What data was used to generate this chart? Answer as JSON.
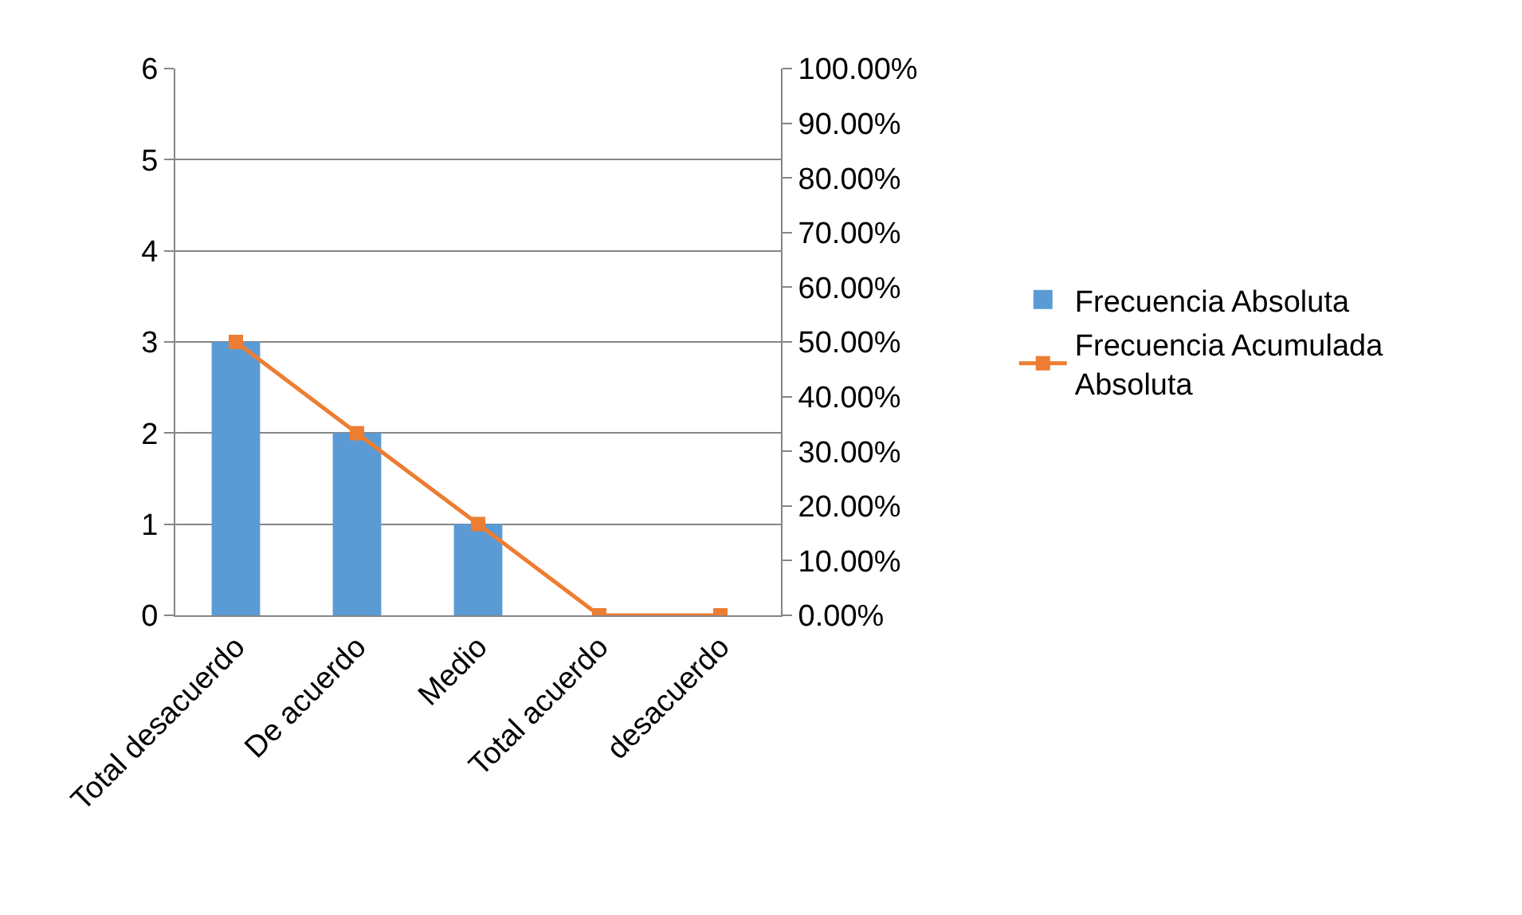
{
  "chart_data": {
    "type": "bar",
    "categories": [
      "Total desacuerdo",
      "De acuerdo",
      "Medio",
      "Total acuerdo",
      "desacuerdo"
    ],
    "series": [
      {
        "name": "Frecuencia Absoluta",
        "color": "#5b9bd5",
        "values": [
          3,
          2,
          1,
          0,
          0
        ]
      },
      {
        "name": "Frecuencia Acumulada Absoluta",
        "type": "line",
        "axis": "y2",
        "color": "#ed7d31",
        "marker": "square",
        "line_style": "solid",
        "values": [
          50,
          33.3,
          16.7,
          0,
          0
        ]
      }
    ],
    "ylim": [
      0,
      6
    ],
    "yticks": [
      0,
      1,
      2,
      3,
      4,
      5,
      6
    ],
    "y2lim": [
      0,
      100
    ],
    "y2ticks": [
      {
        "value": 0,
        "label": "0.00%"
      },
      {
        "value": 10,
        "label": "10.00%"
      },
      {
        "value": 20,
        "label": "20.00%"
      },
      {
        "value": 30,
        "label": "30.00%"
      },
      {
        "value": 40,
        "label": "40.00%"
      },
      {
        "value": 50,
        "label": "50.00%"
      },
      {
        "value": 60,
        "label": "60.00%"
      },
      {
        "value": 70,
        "label": "70.00%"
      },
      {
        "value": 80,
        "label": "80.00%"
      },
      {
        "value": 90,
        "label": "90.00%"
      },
      {
        "value": 100,
        "label": "100.00%"
      }
    ],
    "grid": "y",
    "legend": "right"
  }
}
